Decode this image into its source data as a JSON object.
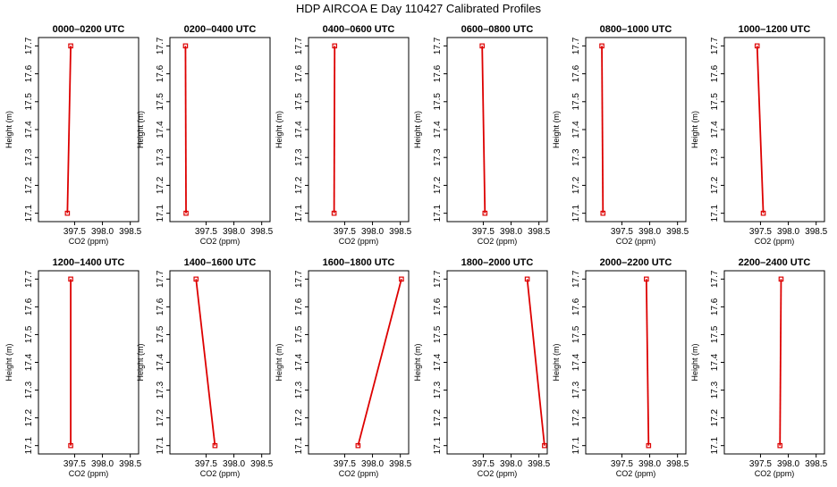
{
  "title": "HDP AIRCOA E  Day 110427  Calibrated Profiles",
  "colors": {
    "series": "#dd0000",
    "axis": "#000000",
    "background": "#ffffff"
  },
  "chart_data": {
    "type": "line",
    "title": "HDP AIRCOA E  Day 110427  Calibrated Profiles",
    "xlabel": "CO2 (ppm)",
    "ylabel": "Height (m)",
    "xlim": [
      396.85,
      398.65
    ],
    "ylim": [
      17.07,
      17.73
    ],
    "xticks": [
      "397.5",
      "398.0",
      "398.5"
    ],
    "yticks": [
      "17.1",
      "17.2",
      "17.3",
      "17.4",
      "17.5",
      "17.6",
      "17.7"
    ],
    "panels": [
      {
        "title": "0000–0200 UTC",
        "points": [
          {
            "x": 397.43,
            "y": 17.7
          },
          {
            "x": 397.37,
            "y": 17.1
          }
        ]
      },
      {
        "title": "0200–0400 UTC",
        "points": [
          {
            "x": 397.13,
            "y": 17.7
          },
          {
            "x": 397.14,
            "y": 17.1
          }
        ]
      },
      {
        "title": "0400–0600 UTC",
        "points": [
          {
            "x": 397.32,
            "y": 17.7
          },
          {
            "x": 397.31,
            "y": 17.1
          }
        ]
      },
      {
        "title": "0600–0800 UTC",
        "points": [
          {
            "x": 397.48,
            "y": 17.7
          },
          {
            "x": 397.53,
            "y": 17.1
          }
        ]
      },
      {
        "title": "0800–1000 UTC",
        "points": [
          {
            "x": 397.14,
            "y": 17.7
          },
          {
            "x": 397.16,
            "y": 17.1
          }
        ]
      },
      {
        "title": "1000–1200 UTC",
        "points": [
          {
            "x": 397.44,
            "y": 17.7
          },
          {
            "x": 397.55,
            "y": 17.1
          }
        ]
      },
      {
        "title": "1200–1400 UTC",
        "points": [
          {
            "x": 397.43,
            "y": 17.7
          },
          {
            "x": 397.43,
            "y": 17.1
          }
        ]
      },
      {
        "title": "1400–1600 UTC",
        "points": [
          {
            "x": 397.32,
            "y": 17.7
          },
          {
            "x": 397.66,
            "y": 17.1
          }
        ]
      },
      {
        "title": "1600–1800 UTC",
        "points": [
          {
            "x": 398.52,
            "y": 17.7
          },
          {
            "x": 397.74,
            "y": 17.1
          }
        ]
      },
      {
        "title": "1800–2000 UTC",
        "points": [
          {
            "x": 398.29,
            "y": 17.7
          },
          {
            "x": 398.6,
            "y": 17.1
          }
        ]
      },
      {
        "title": "2000–2200 UTC",
        "points": [
          {
            "x": 397.94,
            "y": 17.7
          },
          {
            "x": 397.98,
            "y": 17.1
          }
        ]
      },
      {
        "title": "2200–2400 UTC",
        "points": [
          {
            "x": 397.87,
            "y": 17.7
          },
          {
            "x": 397.85,
            "y": 17.1
          }
        ]
      }
    ]
  }
}
